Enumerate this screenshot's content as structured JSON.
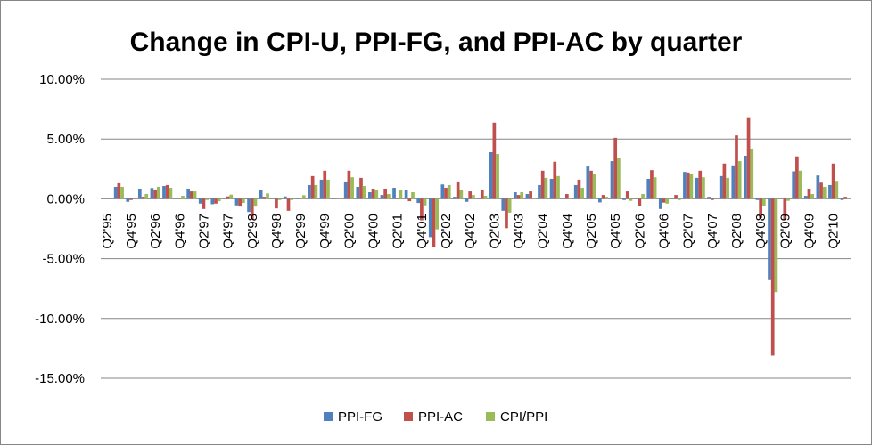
{
  "chart_data": {
    "type": "bar",
    "title": "Change in CPI-U, PPI-FG, and PPI-AC by quarter",
    "xlabel": "",
    "ylabel": "",
    "ylim": [
      -15,
      10
    ],
    "y_ticks": [
      10,
      5,
      0,
      -5,
      -10,
      -15
    ],
    "y_tick_labels": [
      "10.00%",
      "5.00%",
      "0.00%",
      "-5.00%",
      "-10.00%",
      "-15.00%"
    ],
    "x_tick_labels": [
      "Q2'95",
      "Q4'95",
      "Q2'96",
      "Q4'96",
      "Q2'97",
      "Q4'97",
      "Q2'98",
      "Q4'98",
      "Q2'99",
      "Q4'99",
      "Q2'00",
      "Q4'00",
      "Q2'01",
      "Q4'01",
      "Q2'02",
      "Q4'02",
      "Q2'03",
      "Q4'03",
      "Q2'04",
      "Q4'04",
      "Q2'05",
      "Q4'05",
      "Q2'06",
      "Q4'06",
      "Q2'07",
      "Q4'07",
      "Q2'08",
      "Q4'08",
      "Q2'09",
      "Q4'09",
      "Q2'10"
    ],
    "category_count": 62,
    "grid": true,
    "legend_position": "bottom",
    "series": [
      {
        "name": "PPI-FG",
        "color": "#4F81BD",
        "values": [
          null,
          1.0,
          -0.25,
          0.85,
          0.9,
          1.07,
          0,
          0.85,
          -0.4,
          -0.45,
          0.1,
          -0.55,
          -1.1,
          0.7,
          0,
          0.2,
          0.1,
          1.15,
          1.6,
          0.1,
          1.45,
          1.0,
          0.55,
          0.32,
          0.92,
          0.77,
          -0.35,
          -3.2,
          1.2,
          0.17,
          -0.25,
          0.1,
          3.9,
          -1.0,
          0.55,
          0.4,
          1.15,
          1.67,
          0,
          1.15,
          2.7,
          -0.3,
          3.15,
          -0.1,
          0.1,
          1.67,
          -0.85,
          0.1,
          2.25,
          1.75,
          0.17,
          1.9,
          2.8,
          3.6,
          -0.1,
          -6.8,
          0,
          2.3,
          0.25,
          1.95,
          1.15,
          -0.1
        ]
      },
      {
        "name": "PPI-AC",
        "color": "#C0504D",
        "values": [
          null,
          1.3,
          -0.1,
          0.17,
          0.7,
          1.15,
          0,
          0.62,
          -0.85,
          -0.4,
          0.2,
          -0.65,
          -1.75,
          0.17,
          -0.8,
          -1.0,
          0,
          1.9,
          2.35,
          0,
          2.35,
          1.75,
          0.85,
          0.85,
          0.1,
          -0.2,
          -1.8,
          -4.0,
          0.92,
          1.45,
          0.62,
          0.7,
          6.37,
          -2.45,
          0.32,
          0.62,
          2.35,
          3.1,
          0.4,
          1.6,
          2.35,
          0.32,
          5.1,
          0.62,
          -0.62,
          2.4,
          -0.32,
          0.32,
          2.2,
          2.35,
          -0.1,
          2.95,
          5.3,
          6.75,
          -1.6,
          -13.1,
          -1.75,
          3.55,
          0.85,
          1.35,
          2.95,
          0.17
        ]
      },
      {
        "name": "CPI/PPI",
        "color": "#9BBB59",
        "values": [
          null,
          1.0,
          0,
          0.4,
          1.0,
          0.92,
          0.25,
          0.62,
          -0.1,
          -0.2,
          0.35,
          -0.35,
          -0.65,
          0.45,
          -0.1,
          -0.1,
          0.3,
          1.15,
          1.6,
          0.1,
          1.8,
          1.07,
          0.7,
          0.4,
          0.77,
          0.55,
          -0.55,
          -2.55,
          1.15,
          0.7,
          0.32,
          0.25,
          3.75,
          -1.15,
          0.55,
          0.1,
          1.75,
          1.9,
          0.1,
          0.92,
          2.1,
          0.17,
          3.4,
          -0.17,
          0.4,
          1.8,
          -0.4,
          -0.1,
          2.05,
          1.8,
          0,
          1.75,
          3.15,
          4.2,
          -0.62,
          -7.8,
          -0.17,
          2.35,
          0.4,
          1.0,
          1.5,
          0.1
        ]
      }
    ]
  }
}
